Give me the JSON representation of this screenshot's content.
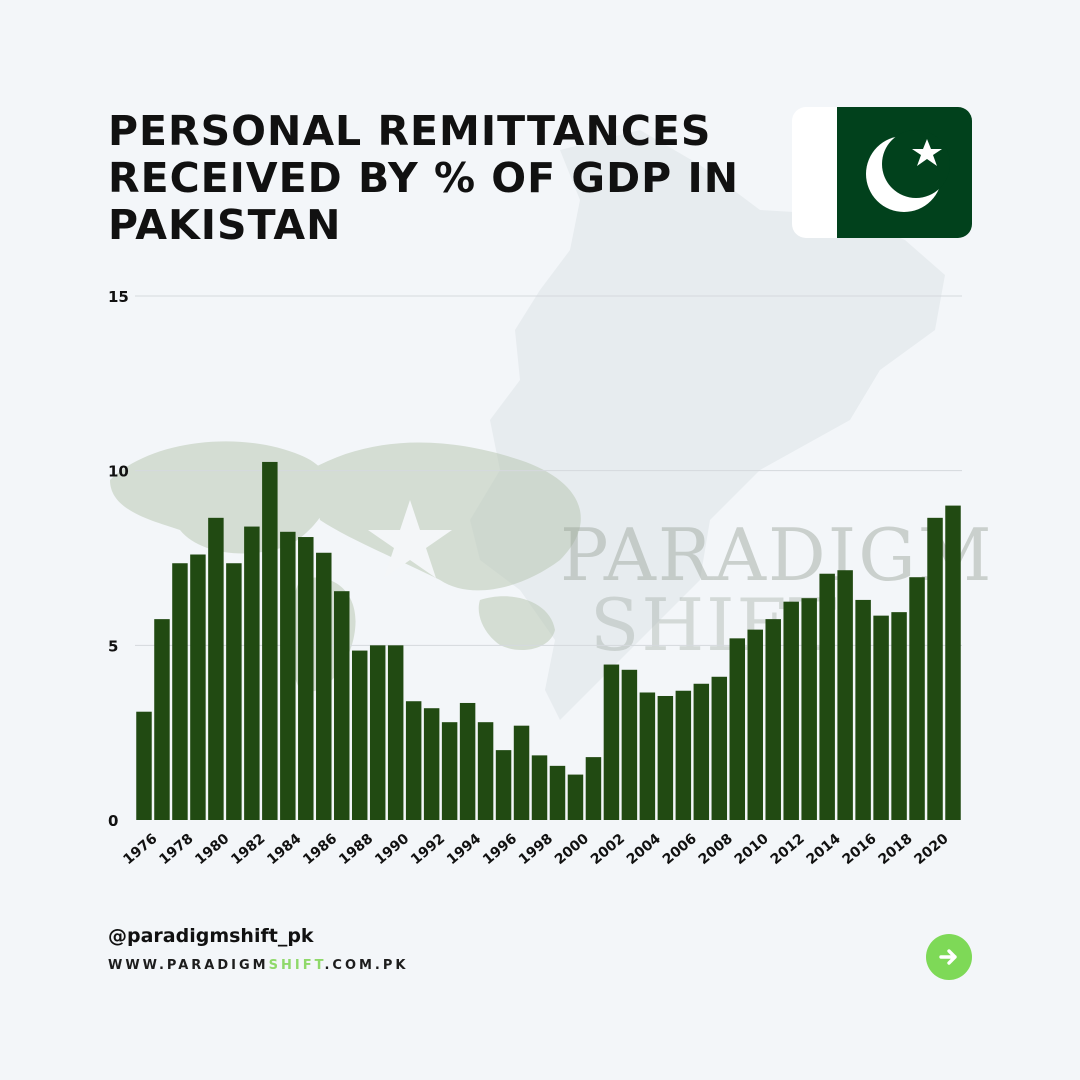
{
  "header": {
    "title_lines": [
      "PERSONAL REMITTANCES",
      "RECEIVED BY % OF GDP IN",
      "PAKISTAN"
    ]
  },
  "icons": {
    "flag": "pakistan-flag-icon",
    "next": "arrow-right-icon"
  },
  "watermark": {
    "line1": "PARADIGM",
    "line2": "SHIFT"
  },
  "footer": {
    "handle": "@paradigmshift_pk",
    "site_parts": [
      "WWW.",
      "PARADIGM",
      "SHIFT",
      ".COM.PK"
    ]
  },
  "colors": {
    "bar": "#214a12",
    "flag_green": "#01411c",
    "accent": "#7ed957",
    "accent_text": "#8fd96a",
    "gridline": "#d5d9dd"
  },
  "chart_data": {
    "type": "bar",
    "title": "PERSONAL REMITTANCES RECEIVED BY % OF GDP IN PAKISTAN",
    "xlabel": "",
    "ylabel": "",
    "ylim": [
      0,
      15
    ],
    "yticks": [
      0,
      5,
      10,
      15
    ],
    "grid": true,
    "legend": "none",
    "categories": [
      "1976",
      "1977",
      "1978",
      "1979",
      "1980",
      "1981",
      "1982",
      "1983",
      "1984",
      "1985",
      "1986",
      "1987",
      "1988",
      "1989",
      "1990",
      "1991",
      "1992",
      "1993",
      "1994",
      "1995",
      "1996",
      "1997",
      "1998",
      "1999",
      "2000",
      "2001",
      "2002",
      "2003",
      "2004",
      "2005",
      "2006",
      "2007",
      "2008",
      "2009",
      "2010",
      "2011",
      "2012",
      "2013",
      "2014",
      "2015",
      "2016",
      "2017",
      "2018",
      "2019",
      "2020",
      "2021"
    ],
    "x_tick_labels": [
      "1976",
      "1978",
      "1980",
      "1982",
      "1984",
      "1986",
      "1988",
      "1990",
      "1992",
      "1994",
      "1996",
      "1998",
      "2000",
      "2002",
      "2004",
      "2006",
      "2008",
      "2010",
      "2012",
      "2014",
      "2016",
      "2018",
      "2020"
    ],
    "values": [
      3.1,
      5.75,
      7.35,
      7.6,
      8.65,
      7.35,
      8.4,
      10.25,
      8.25,
      8.1,
      7.65,
      6.55,
      4.85,
      5.0,
      5.0,
      3.4,
      3.2,
      2.8,
      3.35,
      2.8,
      2.0,
      2.7,
      1.85,
      1.55,
      1.3,
      1.8,
      4.45,
      4.3,
      3.65,
      3.55,
      3.7,
      3.9,
      4.1,
      5.2,
      5.45,
      5.75,
      6.25,
      6.35,
      7.05,
      7.15,
      6.3,
      5.85,
      5.95,
      6.95,
      8.65,
      9.0
    ]
  }
}
